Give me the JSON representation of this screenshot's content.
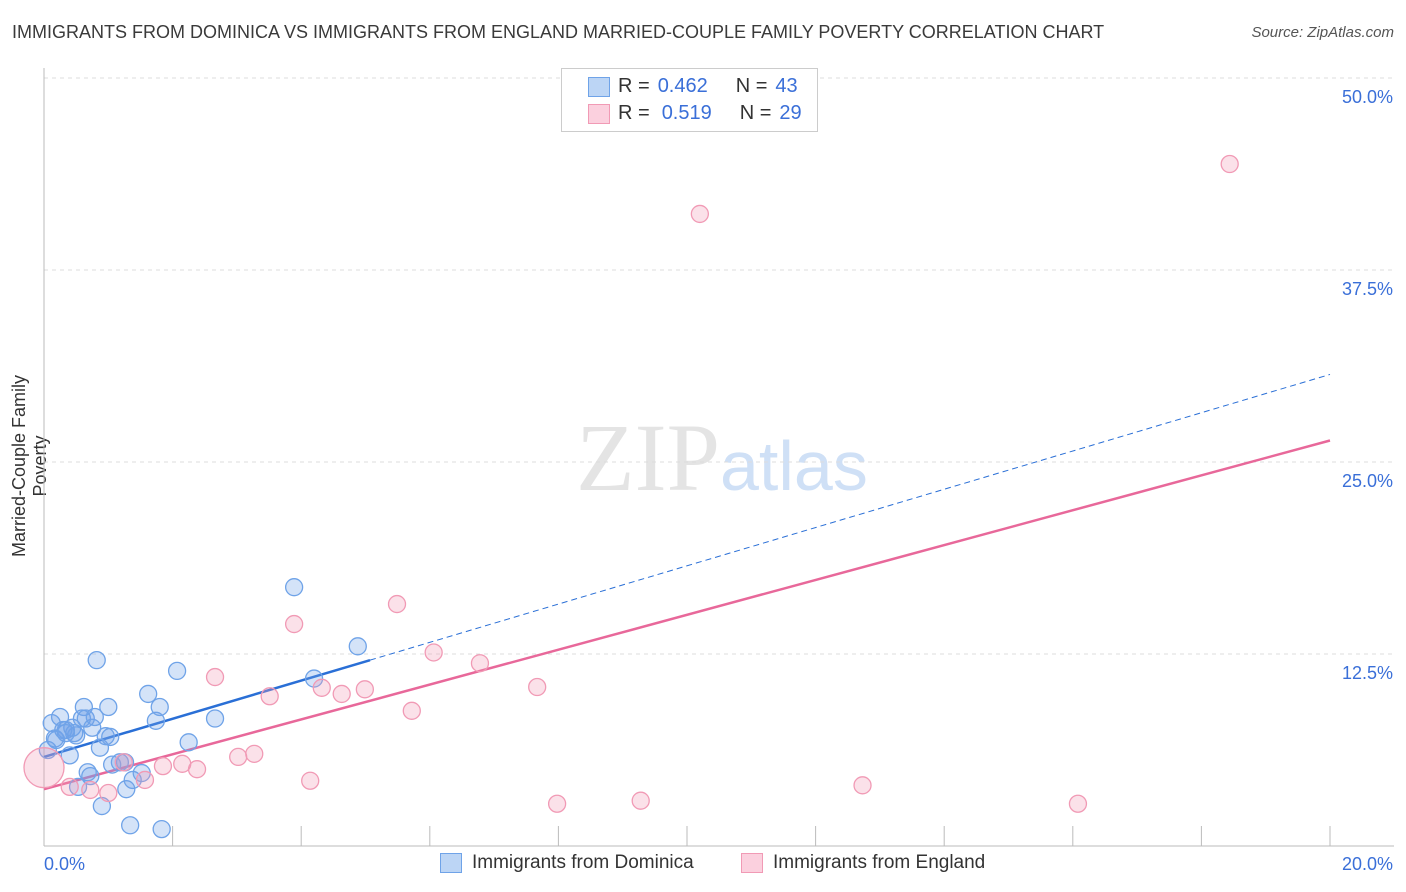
{
  "chart_data": {
    "type": "scatter",
    "title": "IMMIGRANTS FROM DOMINICA VS IMMIGRANTS FROM ENGLAND MARRIED-COUPLE FAMILY POVERTY CORRELATION CHART",
    "source": "Source: ZipAtlas.com",
    "xlabel": "",
    "ylabel": "Married-Couple Family Poverty",
    "xlim": [
      0,
      20
    ],
    "ylim": [
      0,
      50
    ],
    "x_tick_labels": [
      "0.0%",
      "20.0%"
    ],
    "y_ticks": [
      12.5,
      25,
      37.5,
      50
    ],
    "y_tick_labels": [
      "12.5%",
      "25.0%",
      "37.5%",
      "50.0%"
    ],
    "watermark": "ZIPatlas",
    "series": [
      {
        "name": "Immigrants from Dominica",
        "color": "#6fa3e8",
        "line_color": "#2a6fd6",
        "R": "0.462",
        "N": "43",
        "trend": [
          [
            0,
            5.8
          ],
          [
            5.07,
            12.1
          ]
        ],
        "trend_ext": [
          [
            5.07,
            12.1
          ],
          [
            20,
            30.7
          ]
        ],
        "points": [
          [
            0.06,
            6.25
          ],
          [
            0.12,
            8.0
          ],
          [
            0.17,
            7.0
          ],
          [
            0.25,
            8.4
          ],
          [
            0.3,
            7.55
          ],
          [
            0.34,
            7.55
          ],
          [
            0.4,
            5.9
          ],
          [
            0.44,
            7.7
          ],
          [
            0.5,
            7.2
          ],
          [
            0.47,
            7.35
          ],
          [
            0.62,
            9.05
          ],
          [
            0.59,
            8.3
          ],
          [
            0.65,
            8.3
          ],
          [
            0.75,
            7.7
          ],
          [
            0.79,
            8.4
          ],
          [
            0.82,
            12.1
          ],
          [
            0.87,
            6.4
          ],
          [
            0.68,
            4.8
          ],
          [
            0.72,
            4.55
          ],
          [
            0.53,
            3.85
          ],
          [
            0.9,
            2.6
          ],
          [
            0.96,
            7.15
          ],
          [
            1.0,
            9.05
          ],
          [
            1.06,
            5.3
          ],
          [
            1.18,
            5.45
          ],
          [
            1.28,
            3.7
          ],
          [
            1.34,
            1.35
          ],
          [
            1.38,
            4.3
          ],
          [
            1.52,
            4.75
          ],
          [
            1.62,
            9.9
          ],
          [
            1.74,
            8.15
          ],
          [
            1.8,
            9.05
          ],
          [
            1.83,
            1.1
          ],
          [
            2.07,
            11.4
          ],
          [
            2.25,
            6.75
          ],
          [
            2.66,
            8.3
          ],
          [
            3.89,
            16.85
          ],
          [
            4.2,
            10.9
          ],
          [
            4.88,
            13.0
          ],
          [
            1.03,
            7.1
          ],
          [
            1.26,
            5.45
          ],
          [
            0.19,
            6.9
          ],
          [
            0.34,
            7.35
          ]
        ]
      },
      {
        "name": "Immigrants from England",
        "color": "#f19ab5",
        "line_color": "#e8689a",
        "R": "0.519",
        "N": "29",
        "trend": [
          [
            0,
            3.7
          ],
          [
            20,
            26.4
          ]
        ],
        "points": [
          [
            0.0,
            5.1
          ],
          [
            0.4,
            3.85
          ],
          [
            0.72,
            3.65
          ],
          [
            1.0,
            3.45
          ],
          [
            1.24,
            5.45
          ],
          [
            1.57,
            4.3
          ],
          [
            1.85,
            5.2
          ],
          [
            2.15,
            5.35
          ],
          [
            2.38,
            5.0
          ],
          [
            2.66,
            11.0
          ],
          [
            3.02,
            5.8
          ],
          [
            3.27,
            6.0
          ],
          [
            3.51,
            9.75
          ],
          [
            3.89,
            14.45
          ],
          [
            4.14,
            4.25
          ],
          [
            4.32,
            10.3
          ],
          [
            4.63,
            9.9
          ],
          [
            4.99,
            10.2
          ],
          [
            5.49,
            15.75
          ],
          [
            5.72,
            8.8
          ],
          [
            6.06,
            12.6
          ],
          [
            6.78,
            11.9
          ],
          [
            7.67,
            10.35
          ],
          [
            7.98,
            2.75
          ],
          [
            9.28,
            2.95
          ],
          [
            10.2,
            41.15
          ],
          [
            12.73,
            3.95
          ],
          [
            16.08,
            2.75
          ],
          [
            18.44,
            44.4
          ]
        ]
      }
    ]
  },
  "legend": {
    "r_label": "R =",
    "n_label": "N ="
  }
}
